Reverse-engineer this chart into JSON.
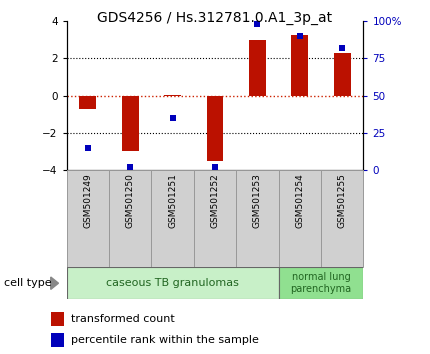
{
  "title": "GDS4256 / Hs.312781.0.A1_3p_at",
  "samples": [
    "GSM501249",
    "GSM501250",
    "GSM501251",
    "GSM501252",
    "GSM501253",
    "GSM501254",
    "GSM501255"
  ],
  "transformed_count": [
    -0.7,
    -3.0,
    0.05,
    -3.5,
    3.0,
    3.25,
    2.3
  ],
  "percentile_rank": [
    15,
    2,
    35,
    2,
    98,
    90,
    82
  ],
  "ylim_left": [
    -4,
    4
  ],
  "ylim_right": [
    0,
    100
  ],
  "yticks_left": [
    -4,
    -2,
    0,
    2,
    4
  ],
  "yticks_right": [
    0,
    25,
    50,
    75,
    100
  ],
  "ytick_labels_right": [
    "0",
    "25",
    "50",
    "75",
    "100%"
  ],
  "bar_color": "#bb1100",
  "dot_color": "#0000bb",
  "hline_color": "#cc2200",
  "dotline_color": "#000000",
  "group1_label": "caseous TB granulomas",
  "group2_label": "normal lung\nparenchyma",
  "group1_samples": [
    0,
    1,
    2,
    3,
    4
  ],
  "group2_samples": [
    5,
    6
  ],
  "cell_type_label": "cell type",
  "legend_bar_label": "transformed count",
  "legend_dot_label": "percentile rank within the sample",
  "group1_color": "#c8f0c8",
  "group2_color": "#90e090",
  "sample_box_color": "#d0d0d0",
  "title_fontsize": 10,
  "tick_fontsize": 7.5,
  "label_fontsize": 8
}
